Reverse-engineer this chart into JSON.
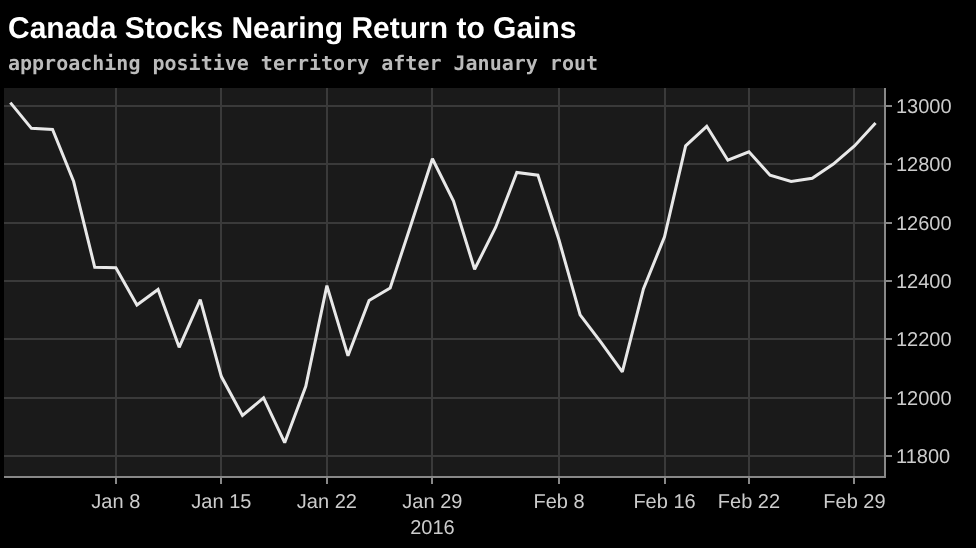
{
  "chart_data": {
    "type": "line",
    "title": "Canada Stocks Nearing Return to Gains",
    "subtitle": "approaching positive territory after January rout",
    "categories": [
      null,
      null,
      null,
      null,
      null,
      "Jan 8",
      null,
      null,
      null,
      null,
      "Jan 15",
      null,
      null,
      null,
      null,
      "Jan 22",
      null,
      null,
      null,
      null,
      "Jan 29\n2016",
      null,
      null,
      null,
      null,
      null,
      "Feb 8",
      null,
      null,
      null,
      null,
      "Feb 16",
      null,
      null,
      null,
      "Feb 22",
      null,
      null,
      null,
      null,
      "Feb 29",
      null
    ],
    "series": [
      {
        "color": "#e8e8e8",
        "values": [
          13010,
          12922,
          12918,
          12740,
          12447,
          12445,
          12318,
          12371,
          12173,
          12336,
          12073,
          11940,
          12000,
          11847,
          12040,
          12384,
          12144,
          12333,
          12376,
          12596,
          12818,
          12673,
          12440,
          12584,
          12771,
          12762,
          12540,
          12284,
          12189,
          12089,
          12373,
          12551,
          12862,
          12929,
          12813,
          12842,
          12762,
          12740,
          12751,
          12800,
          12862,
          12940
        ]
      }
    ],
    "ylim": [
      11733,
      13060
    ],
    "yticks": [
      11800,
      12000,
      12200,
      12400,
      12600,
      12800,
      13000
    ],
    "grid": true,
    "marker": "none",
    "line_style": "solid"
  }
}
